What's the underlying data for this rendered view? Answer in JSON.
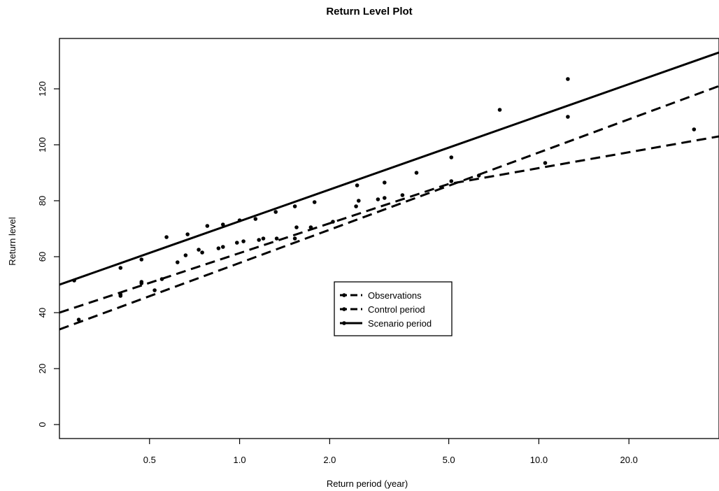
{
  "chart_data": {
    "type": "line",
    "title": "Return Level Plot",
    "xlabel": "Return period (year)",
    "ylabel": "Return level",
    "x_scale": "log",
    "xlim": [
      0.25,
      40
    ],
    "ylim": [
      -5,
      138
    ],
    "x_ticks": [
      0.5,
      1.0,
      2.0,
      5.0,
      10.0,
      20.0
    ],
    "x_tick_labels": [
      "0.5",
      "1.0",
      "2.0",
      "5.0",
      "10.0",
      "20.0"
    ],
    "y_ticks": [
      0,
      20,
      40,
      60,
      80,
      100,
      120
    ],
    "y_tick_labels": [
      "0",
      "20",
      "40",
      "60",
      "80",
      "100",
      "120"
    ],
    "grid": false,
    "legend_position": "center",
    "legend": [
      "Observations",
      "Control period",
      "Scenario period"
    ],
    "series": [
      {
        "name": "Observations",
        "style": "dashed",
        "line": {
          "x": [
            0.25,
            40
          ],
          "y": [
            34,
            121
          ]
        },
        "points": [
          [
            0.28,
            51.5
          ],
          [
            0.29,
            37.5
          ],
          [
            0.4,
            46.0
          ],
          [
            0.47,
            51.0
          ],
          [
            0.52,
            48.0
          ],
          [
            0.55,
            52.0
          ],
          [
            0.66,
            60.5
          ],
          [
            0.73,
            62.5
          ],
          [
            0.85,
            63.0
          ],
          [
            0.98,
            65.0
          ],
          [
            1.16,
            66.0
          ],
          [
            1.33,
            66.5
          ],
          [
            1.53,
            66.5
          ],
          [
            1.73,
            70.5
          ],
          [
            2.05,
            72.5
          ],
          [
            2.45,
            78.0
          ],
          [
            2.9,
            80.5
          ],
          [
            3.5,
            82.0
          ],
          [
            5.1,
            87.0
          ],
          [
            12.5,
            110.0
          ]
        ]
      },
      {
        "name": "Control period",
        "style": "dashed",
        "line": {
          "x": [
            0.25,
            5,
            40
          ],
          "y": [
            40,
            86,
            103
          ]
        },
        "points": [
          [
            0.4,
            46.5
          ],
          [
            0.47,
            50.5
          ],
          [
            0.62,
            58.0
          ],
          [
            0.75,
            61.5
          ],
          [
            0.88,
            63.5
          ],
          [
            1.03,
            65.5
          ],
          [
            1.2,
            66.5
          ],
          [
            1.55,
            70.5
          ],
          [
            2.5,
            80.0
          ],
          [
            3.05,
            81.0
          ],
          [
            6.3,
            89.0
          ],
          [
            10.5,
            93.5
          ],
          [
            33.0,
            105.5
          ]
        ]
      },
      {
        "name": "Scenario period",
        "style": "solid",
        "line": {
          "x": [
            0.25,
            40
          ],
          "y": [
            50,
            133
          ]
        },
        "points": [
          [
            0.4,
            56.0
          ],
          [
            0.47,
            59.0
          ],
          [
            0.57,
            67.0
          ],
          [
            0.67,
            68.0
          ],
          [
            0.78,
            71.0
          ],
          [
            0.88,
            71.5
          ],
          [
            1.0,
            73.0
          ],
          [
            1.13,
            73.5
          ],
          [
            1.32,
            76.0
          ],
          [
            1.53,
            78.0
          ],
          [
            1.78,
            79.5
          ],
          [
            2.47,
            85.5
          ],
          [
            3.05,
            86.5
          ],
          [
            3.9,
            90.0
          ],
          [
            5.1,
            95.5
          ],
          [
            7.4,
            112.5
          ],
          [
            12.5,
            123.5
          ]
        ]
      }
    ]
  }
}
